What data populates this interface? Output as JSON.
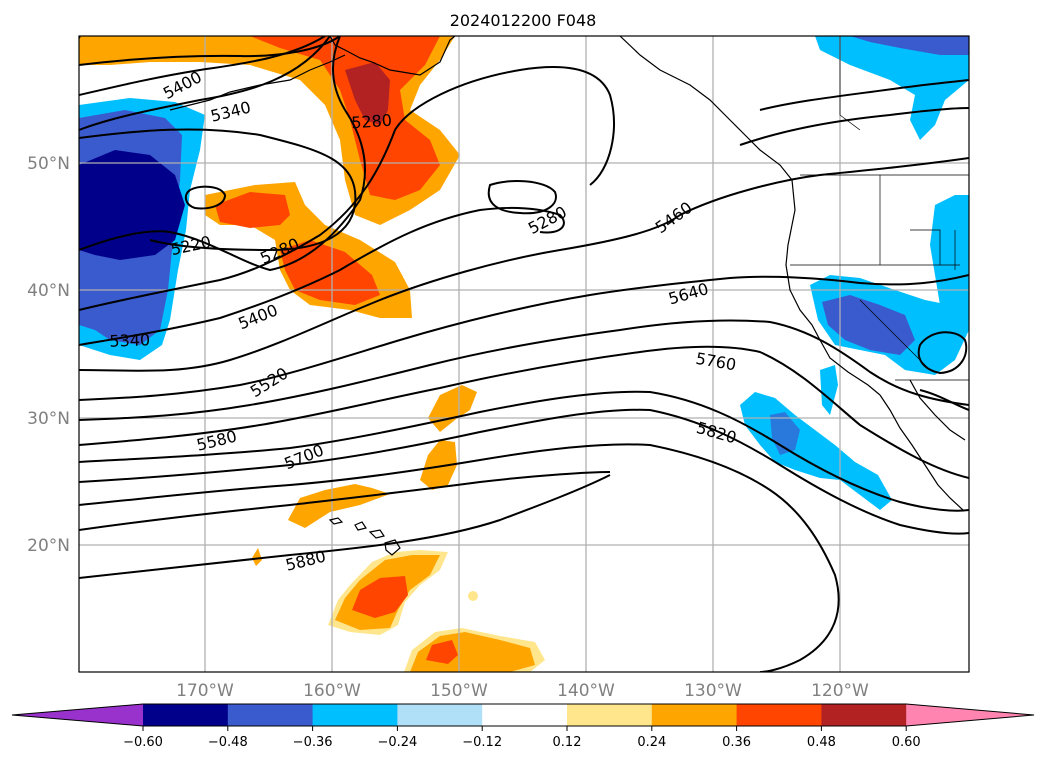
{
  "title": "2024012200 F048",
  "lat_labels": [
    "50°N",
    "40°N",
    "30°N",
    "20°N"
  ],
  "lon_labels": [
    "170°W",
    "160°W",
    "150°W",
    "140°W",
    "130°W",
    "120°W"
  ],
  "colorbar": {
    "ticks": [
      "−0.60",
      "−0.48",
      "−0.36",
      "−0.24",
      "−0.12",
      "0.12",
      "0.24",
      "0.36",
      "0.48",
      "0.60"
    ],
    "colors": [
      "#9932cc",
      "#00008b",
      "#3a5bcd",
      "#00bfff",
      "#afe0f7",
      "#ffffff",
      "#ffe68c",
      "#ffa500",
      "#ff4500",
      "#b22222",
      "#ff85b0"
    ]
  },
  "contour_labels": {
    "l5400a": "5400",
    "l5340a": "5340",
    "l5280a": "5280",
    "l5220": "5220",
    "l5280b": "5280",
    "l5400b": "5400",
    "l5340b": "5340",
    "l5280c": "5280",
    "l5460": "5460",
    "l5640": "5640",
    "l5520": "5520",
    "l5760": "5760",
    "l5580": "5580",
    "l5820": "5820",
    "l5700": "5700",
    "l5880": "5880"
  }
}
